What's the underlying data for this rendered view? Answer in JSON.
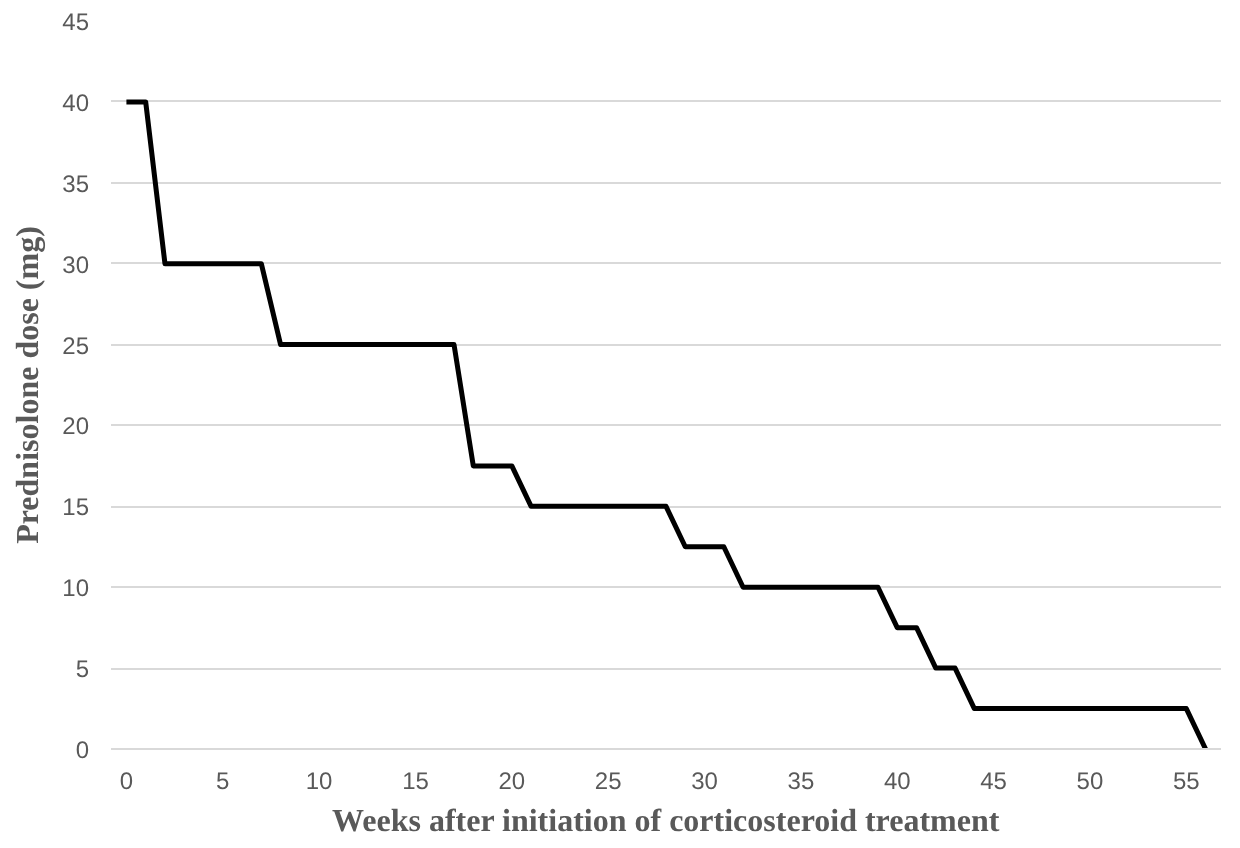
{
  "chart_data": {
    "type": "line",
    "xlabel": "Weeks after initiation of corticosteroid treatment",
    "ylabel": "Prednisolone dose (mg)",
    "x": [
      0,
      1,
      2,
      7,
      8,
      17,
      18,
      20,
      21,
      28,
      29,
      31,
      32,
      39,
      40,
      41,
      42,
      43,
      44,
      55,
      56
    ],
    "series": [
      {
        "color": "#000000",
        "values": [
          40,
          40,
          30,
          30,
          25,
          25,
          17.5,
          17.5,
          15,
          15,
          12.5,
          12.5,
          10,
          10,
          7.5,
          7.5,
          5,
          5,
          2.5,
          2.5,
          0
        ]
      }
    ],
    "xlim": [
      -0.8,
      56.8
    ],
    "xticks": [
      0,
      5,
      10,
      15,
      20,
      25,
      30,
      35,
      40,
      45,
      50,
      55
    ],
    "ylim": [
      0,
      45
    ],
    "yticks": [
      0,
      5,
      10,
      15,
      20,
      25,
      30,
      35,
      40,
      45
    ],
    "grid": "y",
    "marker": "none",
    "line_style": "solid"
  }
}
